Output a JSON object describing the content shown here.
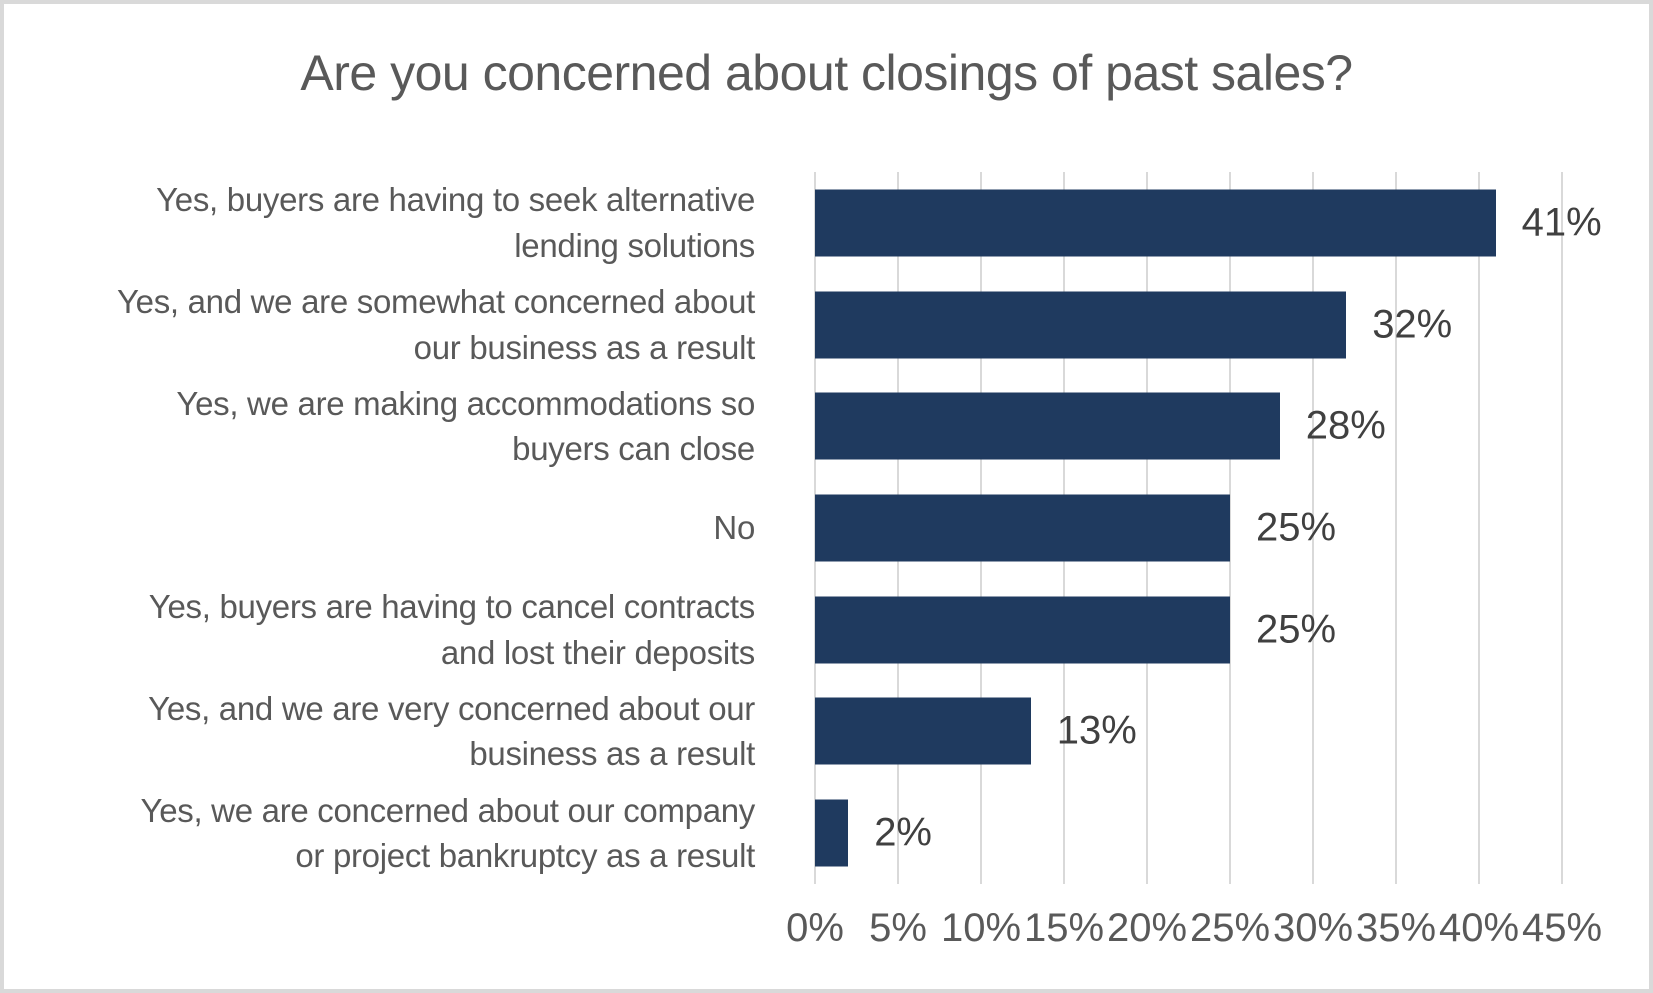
{
  "page": {
    "background_color": "#ffffff",
    "border_color": "#d9d9d9"
  },
  "chart_data": {
    "type": "bar",
    "orientation": "horizontal",
    "title": "Are you concerned about closings of past sales?",
    "categories": [
      "Yes, buyers are having to seek alternative\nlending solutions",
      "Yes, and we are somewhat concerned about\nour business as a result",
      "Yes, we are making accommodations so\nbuyers can close",
      "No",
      "Yes, buyers are having to cancel contracts\nand lost their deposits",
      "Yes, and we are very concerned about our\nbusiness as a result",
      "Yes, we are concerned about our company\nor project bankruptcy as a result"
    ],
    "values": [
      41,
      32,
      28,
      25,
      25,
      13,
      2
    ],
    "value_labels": [
      "41%",
      "32%",
      "28%",
      "25%",
      "25%",
      "13%",
      "2%"
    ],
    "x_ticks": [
      "0%",
      "5%",
      "10%",
      "15%",
      "20%",
      "25%",
      "30%",
      "35%",
      "40%",
      "45%"
    ],
    "x_tick_values": [
      0,
      5,
      10,
      15,
      20,
      25,
      30,
      35,
      40,
      45
    ],
    "xlim": [
      0,
      45
    ],
    "xlabel": "",
    "ylabel": "",
    "grid": true,
    "legend": false,
    "colors": {
      "bar": "#1f3a5f",
      "gridline": "#d9d9d9",
      "title_text": "#595959",
      "category_text": "#595959",
      "axis_text": "#595959",
      "value_text": "#404040"
    }
  }
}
